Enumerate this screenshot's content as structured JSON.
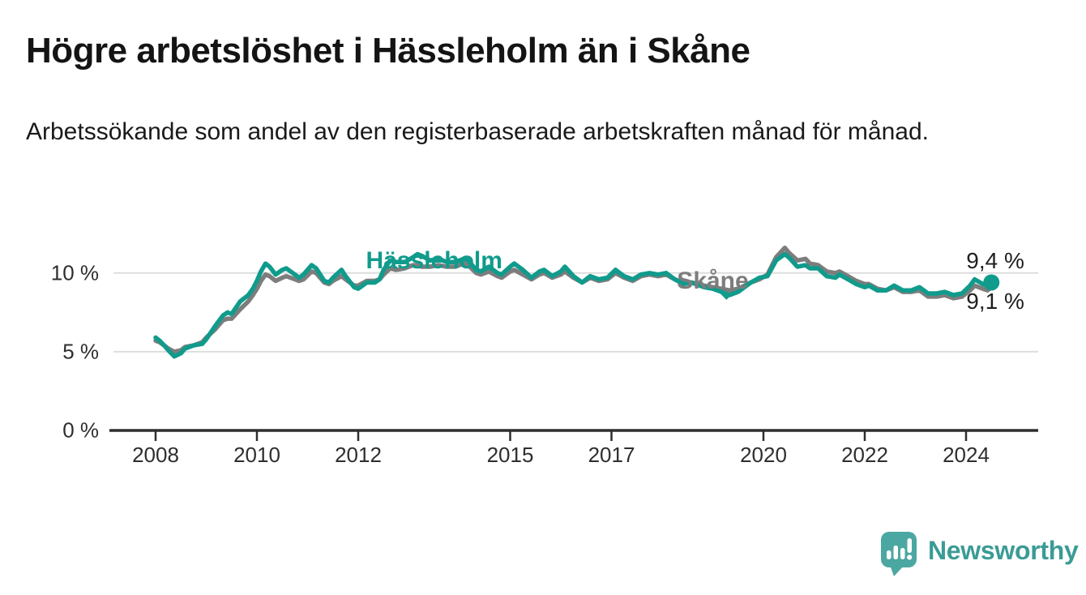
{
  "header": {
    "title": "Högre arbetslöshet i Hässleholm än i Skåne",
    "subtitle": "Arbetssökande som andel av den registerbaserade arbetskraften månad för månad."
  },
  "footer": {
    "brand": "Newsworthy",
    "logo_icon": "speech-bubble-bar-chart-icon",
    "icon_color": "#4ba7a1",
    "brand_text_color": "#3b9b95"
  },
  "colors": {
    "hassleholm": "#109b8c",
    "skane": "#7d7d7d",
    "gridline": "#dddddd",
    "axis": "#2e2e2e",
    "text": "#1f1f1f"
  },
  "chart_data": {
    "type": "line",
    "title": "Högre arbetslöshet i Hässleholm än i Skåne",
    "subtitle": "Arbetssökande som andel av den registerbaserade arbetskraften månad för månad.",
    "unit": "%",
    "grid": "horizontal",
    "legend": "inline-labels",
    "x_axis": {
      "range": [
        2007.1,
        2025.4
      ],
      "ticks": [
        2008,
        2010,
        2012,
        2015,
        2017,
        2020,
        2022,
        2024
      ]
    },
    "y_axis": {
      "range": [
        0,
        12.6
      ],
      "ticks": [
        {
          "label": "0 %",
          "value": 0
        },
        {
          "label": "5 %",
          "value": 5
        },
        {
          "label": "10 %",
          "value": 10
        }
      ]
    },
    "annotations": {
      "hassleholm_label": {
        "text": "Hässleholm",
        "x": 2013.5,
        "y": 10.76
      },
      "skane_label": {
        "text": "Skåne",
        "x": 2019.0,
        "y": 9.47
      },
      "skane_dip_marker": {
        "shape": "triangle-down",
        "x": 2019.27,
        "y": 8.5
      },
      "end_dot": {
        "series": "Hässleholm",
        "x": 2024.5,
        "y": 9.4
      }
    },
    "series": [
      {
        "name": "Skåne",
        "color": "#7d7d7d",
        "end_label": "9,1 %",
        "points": [
          [
            2008.0,
            5.7
          ],
          [
            2008.08,
            5.6
          ],
          [
            2008.17,
            5.4
          ],
          [
            2008.25,
            5.2
          ],
          [
            2008.37,
            5.0
          ],
          [
            2008.5,
            5.1
          ],
          [
            2008.58,
            5.3
          ],
          [
            2008.75,
            5.4
          ],
          [
            2008.92,
            5.6
          ],
          [
            2009.0,
            5.9
          ],
          [
            2009.17,
            6.4
          ],
          [
            2009.33,
            7.0
          ],
          [
            2009.42,
            7.1
          ],
          [
            2009.5,
            7.1
          ],
          [
            2009.67,
            7.7
          ],
          [
            2009.83,
            8.2
          ],
          [
            2009.92,
            8.6
          ],
          [
            2010.0,
            9.0
          ],
          [
            2010.08,
            9.5
          ],
          [
            2010.17,
            9.9
          ],
          [
            2010.25,
            9.8
          ],
          [
            2010.37,
            9.5
          ],
          [
            2010.5,
            9.7
          ],
          [
            2010.58,
            9.8
          ],
          [
            2010.75,
            9.6
          ],
          [
            2010.83,
            9.5
          ],
          [
            2010.92,
            9.6
          ],
          [
            2011.08,
            10.1
          ],
          [
            2011.17,
            10.0
          ],
          [
            2011.33,
            9.4
          ],
          [
            2011.42,
            9.3
          ],
          [
            2011.5,
            9.5
          ],
          [
            2011.67,
            9.8
          ],
          [
            2011.75,
            9.6
          ],
          [
            2011.92,
            9.2
          ],
          [
            2012.0,
            9.2
          ],
          [
            2012.17,
            9.5
          ],
          [
            2012.33,
            9.5
          ],
          [
            2012.42,
            9.6
          ],
          [
            2012.5,
            9.9
          ],
          [
            2012.63,
            10.3
          ],
          [
            2012.75,
            10.2
          ],
          [
            2012.92,
            10.3
          ],
          [
            2013.08,
            10.5
          ],
          [
            2013.17,
            10.5
          ],
          [
            2013.25,
            10.4
          ],
          [
            2013.42,
            10.4
          ],
          [
            2013.58,
            10.5
          ],
          [
            2013.75,
            10.4
          ],
          [
            2013.92,
            10.4
          ],
          [
            2014.08,
            10.6
          ],
          [
            2014.17,
            10.5
          ],
          [
            2014.33,
            10.0
          ],
          [
            2014.42,
            9.9
          ],
          [
            2014.58,
            10.1
          ],
          [
            2014.75,
            9.8
          ],
          [
            2014.83,
            9.7
          ],
          [
            2015.0,
            10.1
          ],
          [
            2015.08,
            10.2
          ],
          [
            2015.25,
            9.9
          ],
          [
            2015.42,
            9.6
          ],
          [
            2015.58,
            9.9
          ],
          [
            2015.67,
            10.0
          ],
          [
            2015.83,
            9.7
          ],
          [
            2016.0,
            9.9
          ],
          [
            2016.08,
            10.1
          ],
          [
            2016.25,
            9.7
          ],
          [
            2016.42,
            9.4
          ],
          [
            2016.58,
            9.7
          ],
          [
            2016.75,
            9.5
          ],
          [
            2016.92,
            9.6
          ],
          [
            2017.08,
            10.0
          ],
          [
            2017.25,
            9.7
          ],
          [
            2017.42,
            9.5
          ],
          [
            2017.58,
            9.8
          ],
          [
            2017.75,
            9.9
          ],
          [
            2017.92,
            9.8
          ],
          [
            2018.08,
            9.9
          ],
          [
            2018.25,
            9.6
          ],
          [
            2018.42,
            9.4
          ],
          [
            2018.58,
            9.4
          ],
          [
            2018.83,
            9.2
          ],
          [
            2019.0,
            9.1
          ],
          [
            2019.17,
            9.0
          ],
          [
            2019.33,
            8.9
          ],
          [
            2019.5,
            9.0
          ],
          [
            2019.75,
            9.4
          ],
          [
            2019.92,
            9.6
          ],
          [
            2020.08,
            9.9
          ],
          [
            2020.25,
            11.0
          ],
          [
            2020.42,
            11.6
          ],
          [
            2020.5,
            11.3
          ],
          [
            2020.67,
            10.8
          ],
          [
            2020.83,
            10.9
          ],
          [
            2020.92,
            10.6
          ],
          [
            2021.08,
            10.5
          ],
          [
            2021.25,
            10.1
          ],
          [
            2021.42,
            10.0
          ],
          [
            2021.5,
            10.1
          ],
          [
            2021.67,
            9.8
          ],
          [
            2021.83,
            9.5
          ],
          [
            2022.0,
            9.3
          ],
          [
            2022.08,
            9.3
          ],
          [
            2022.25,
            9.0
          ],
          [
            2022.42,
            8.9
          ],
          [
            2022.58,
            9.1
          ],
          [
            2022.75,
            8.8
          ],
          [
            2022.92,
            8.8
          ],
          [
            2023.08,
            8.9
          ],
          [
            2023.25,
            8.5
          ],
          [
            2023.42,
            8.5
          ],
          [
            2023.58,
            8.6
          ],
          [
            2023.75,
            8.4
          ],
          [
            2023.92,
            8.5
          ],
          [
            2024.08,
            8.9
          ],
          [
            2024.17,
            9.2
          ],
          [
            2024.33,
            9.0
          ],
          [
            2024.42,
            8.9
          ],
          [
            2024.5,
            9.1
          ]
        ]
      },
      {
        "name": "Hässleholm",
        "color": "#109b8c",
        "end_label": "9,4 %",
        "points": [
          [
            2008.0,
            5.9
          ],
          [
            2008.08,
            5.7
          ],
          [
            2008.17,
            5.4
          ],
          [
            2008.25,
            5.1
          ],
          [
            2008.37,
            4.7
          ],
          [
            2008.5,
            4.9
          ],
          [
            2008.58,
            5.2
          ],
          [
            2008.75,
            5.4
          ],
          [
            2008.92,
            5.5
          ],
          [
            2009.0,
            5.8
          ],
          [
            2009.17,
            6.6
          ],
          [
            2009.33,
            7.3
          ],
          [
            2009.42,
            7.5
          ],
          [
            2009.5,
            7.4
          ],
          [
            2009.67,
            8.2
          ],
          [
            2009.83,
            8.6
          ],
          [
            2009.92,
            9.0
          ],
          [
            2010.0,
            9.5
          ],
          [
            2010.08,
            10.1
          ],
          [
            2010.17,
            10.6
          ],
          [
            2010.25,
            10.4
          ],
          [
            2010.37,
            9.9
          ],
          [
            2010.5,
            10.2
          ],
          [
            2010.58,
            10.3
          ],
          [
            2010.75,
            9.9
          ],
          [
            2010.83,
            9.7
          ],
          [
            2010.92,
            9.9
          ],
          [
            2011.08,
            10.5
          ],
          [
            2011.17,
            10.3
          ],
          [
            2011.33,
            9.5
          ],
          [
            2011.42,
            9.4
          ],
          [
            2011.5,
            9.7
          ],
          [
            2011.67,
            10.2
          ],
          [
            2011.75,
            9.8
          ],
          [
            2011.92,
            9.1
          ],
          [
            2012.0,
            9.0
          ],
          [
            2012.17,
            9.4
          ],
          [
            2012.33,
            9.4
          ],
          [
            2012.42,
            9.6
          ],
          [
            2012.5,
            10.2
          ],
          [
            2012.63,
            10.8
          ],
          [
            2012.75,
            10.7
          ],
          [
            2012.92,
            10.7
          ],
          [
            2013.08,
            11.0
          ],
          [
            2013.17,
            11.2
          ],
          [
            2013.25,
            11.1
          ],
          [
            2013.42,
            10.8
          ],
          [
            2013.58,
            10.9
          ],
          [
            2013.75,
            10.7
          ],
          [
            2013.92,
            10.7
          ],
          [
            2014.08,
            10.9
          ],
          [
            2014.17,
            10.8
          ],
          [
            2014.33,
            10.2
          ],
          [
            2014.42,
            10.1
          ],
          [
            2014.58,
            10.4
          ],
          [
            2014.75,
            10.0
          ],
          [
            2014.83,
            9.9
          ],
          [
            2015.0,
            10.4
          ],
          [
            2015.08,
            10.6
          ],
          [
            2015.25,
            10.2
          ],
          [
            2015.42,
            9.7
          ],
          [
            2015.58,
            10.1
          ],
          [
            2015.67,
            10.2
          ],
          [
            2015.83,
            9.8
          ],
          [
            2016.0,
            10.1
          ],
          [
            2016.08,
            10.4
          ],
          [
            2016.25,
            9.8
          ],
          [
            2016.42,
            9.4
          ],
          [
            2016.58,
            9.8
          ],
          [
            2016.75,
            9.6
          ],
          [
            2016.92,
            9.7
          ],
          [
            2017.08,
            10.2
          ],
          [
            2017.25,
            9.8
          ],
          [
            2017.42,
            9.6
          ],
          [
            2017.58,
            9.9
          ],
          [
            2017.75,
            10.0
          ],
          [
            2017.92,
            9.9
          ],
          [
            2018.08,
            10.0
          ],
          [
            2018.25,
            9.6
          ],
          [
            2018.42,
            9.3
          ],
          [
            2018.58,
            9.4
          ],
          [
            2018.83,
            9.1
          ],
          [
            2019.0,
            9.0
          ],
          [
            2019.17,
            8.8
          ],
          [
            2019.33,
            8.6
          ],
          [
            2019.5,
            8.8
          ],
          [
            2019.75,
            9.4
          ],
          [
            2019.92,
            9.7
          ],
          [
            2020.08,
            9.8
          ],
          [
            2020.25,
            10.8
          ],
          [
            2020.42,
            11.2
          ],
          [
            2020.5,
            11.0
          ],
          [
            2020.67,
            10.4
          ],
          [
            2020.83,
            10.5
          ],
          [
            2020.92,
            10.3
          ],
          [
            2021.08,
            10.3
          ],
          [
            2021.25,
            9.8
          ],
          [
            2021.42,
            9.7
          ],
          [
            2021.5,
            9.9
          ],
          [
            2021.67,
            9.6
          ],
          [
            2021.83,
            9.3
          ],
          [
            2022.0,
            9.1
          ],
          [
            2022.08,
            9.2
          ],
          [
            2022.25,
            8.9
          ],
          [
            2022.42,
            8.9
          ],
          [
            2022.58,
            9.2
          ],
          [
            2022.75,
            8.9
          ],
          [
            2022.92,
            8.9
          ],
          [
            2023.08,
            9.1
          ],
          [
            2023.25,
            8.7
          ],
          [
            2023.42,
            8.7
          ],
          [
            2023.58,
            8.8
          ],
          [
            2023.75,
            8.6
          ],
          [
            2023.92,
            8.7
          ],
          [
            2024.08,
            9.2
          ],
          [
            2024.17,
            9.6
          ],
          [
            2024.33,
            9.3
          ],
          [
            2024.42,
            9.2
          ],
          [
            2024.5,
            9.4
          ]
        ]
      }
    ]
  }
}
